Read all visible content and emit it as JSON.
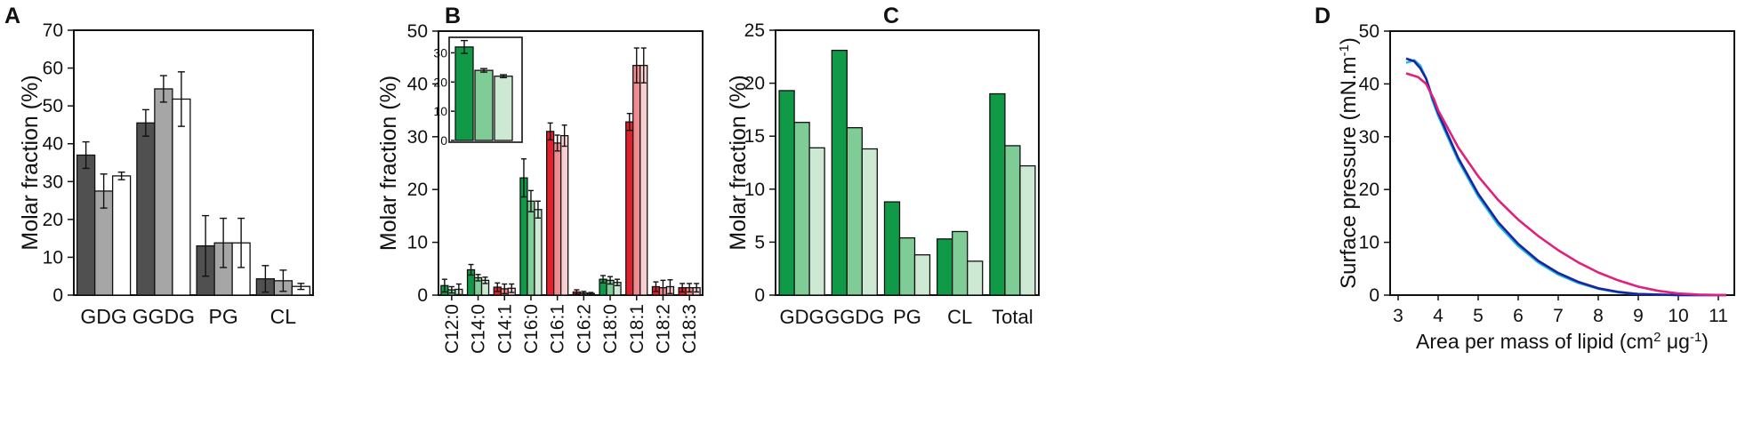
{
  "chart_data": [
    {
      "panel": "A",
      "type": "bar",
      "ylabel": "Molar fraction (%)",
      "xlabel": "",
      "ylim": [
        0,
        70
      ],
      "yticks": [
        "0",
        "10",
        "20",
        "30",
        "40",
        "50",
        "60",
        "70"
      ],
      "categories": [
        "GDG",
        "GGDG",
        "PG",
        "CL"
      ],
      "colors": [
        "#505050",
        "#a6a6a6",
        "#ffffff"
      ],
      "series": [
        {
          "name": "series-1",
          "values": [
            37,
            45.5,
            13,
            4.3
          ],
          "errors": [
            3.5,
            3.5,
            8,
            3.5
          ]
        },
        {
          "name": "series-2",
          "values": [
            27.5,
            54.5,
            13.8,
            3.8
          ],
          "errors": [
            4.5,
            3.5,
            6.5,
            2.8
          ]
        },
        {
          "name": "series-3",
          "values": [
            31.5,
            51.8,
            13.8,
            2.3
          ],
          "errors": [
            1,
            7.2,
            6.5,
            0.8
          ]
        }
      ]
    },
    {
      "panel": "B",
      "type": "bar",
      "ylabel": "Molar fraction (%)",
      "ylim": [
        0,
        50
      ],
      "yticks": [
        "0",
        "10",
        "20",
        "30",
        "40",
        "50"
      ],
      "categories": [
        "C12:0",
        "C14:0",
        "C14:1",
        "C16:0",
        "C16:1",
        "C16:2",
        "C18:0",
        "C18:1",
        "C18:2",
        "C18:3"
      ],
      "group_palette": [
        "green",
        "green",
        "red",
        "green",
        "red",
        "red",
        "green",
        "red",
        "red",
        "red"
      ],
      "palettes": {
        "green": [
          "#109a48",
          "#7fcc96",
          "#cde9d4"
        ],
        "red": [
          "#e0202c",
          "#ef8a8e",
          "#f8cfd1"
        ]
      },
      "series": [
        {
          "name": "series-1",
          "values": [
            1.8,
            4.8,
            1.5,
            22.2,
            31,
            0.6,
            3,
            32.8,
            1.6,
            1.4
          ],
          "errors": [
            1.2,
            1,
            0.8,
            3.6,
            1.6,
            0.4,
            0.7,
            1.6,
            0.9,
            0.8
          ]
        },
        {
          "name": "series-2",
          "values": [
            1,
            3.3,
            1.2,
            17.8,
            28.8,
            0.4,
            2.8,
            43.5,
            1.4,
            1.4
          ],
          "errors": [
            0.6,
            0.6,
            0.9,
            2,
            1.5,
            0.3,
            0.7,
            3.3,
            1.4,
            0.8
          ]
        },
        {
          "name": "series-3",
          "values": [
            1.1,
            2.8,
            1.3,
            16.2,
            30.2,
            0.3,
            2.4,
            43.5,
            1.6,
            1.4
          ],
          "errors": [
            1,
            0.6,
            0.8,
            1.6,
            2,
            0.2,
            0.6,
            3.3,
            1.3,
            0.8
          ]
        }
      ],
      "inset": {
        "ylim": [
          0,
          35
        ],
        "yticks": [
          "0",
          "10",
          "20",
          "30"
        ],
        "colors": [
          "#109a48",
          "#7fcc96",
          "#cde9d4"
        ],
        "values": [
          32,
          24,
          22
        ],
        "errors": [
          2.2,
          0.6,
          0.5
        ]
      }
    },
    {
      "panel": "C",
      "type": "bar",
      "ylabel": "Molar fraction (%)",
      "ylim": [
        0,
        25
      ],
      "yticks": [
        "0",
        "5",
        "10",
        "15",
        "20",
        "25"
      ],
      "categories": [
        "GDG",
        "GGDG",
        "PG",
        "CL",
        "Total"
      ],
      "colors": [
        "#109a48",
        "#7fcc96",
        "#cde9d4"
      ],
      "series": [
        {
          "name": "series-1",
          "values": [
            19.3,
            23.1,
            8.8,
            5.3,
            19
          ]
        },
        {
          "name": "series-2",
          "values": [
            16.3,
            15.8,
            5.4,
            6,
            14.1
          ]
        },
        {
          "name": "series-3",
          "values": [
            13.9,
            13.8,
            3.8,
            3.2,
            12.2
          ]
        }
      ]
    },
    {
      "panel": "D",
      "type": "line",
      "ylabel": "Surface pressure (mN.m",
      "ylabel_sup": "-1",
      "ylabel_end": ")",
      "xlabel": "Area per mass of lipid (cm",
      "xlabel_sup1": "2",
      "xlabel_mid": " μg",
      "xlabel_sup2": "-1",
      "xlabel_end": ")",
      "xlim": [
        2.8,
        11.4
      ],
      "ylim": [
        0,
        50
      ],
      "xticks": [
        "3",
        "4",
        "5",
        "6",
        "7",
        "8",
        "9",
        "10",
        "11"
      ],
      "yticks": [
        "0",
        "10",
        "20",
        "30",
        "40",
        "50"
      ],
      "series": [
        {
          "name": "light-blue",
          "color": "#20b8e0",
          "x": [
            3.2,
            3.4,
            3.55,
            3.7,
            3.85,
            4,
            4.5,
            5,
            5.5,
            6,
            6.5,
            7,
            7.5,
            8,
            8.5,
            9,
            9.5,
            10,
            11.2
          ],
          "y": [
            44,
            44.5,
            43.5,
            41,
            37,
            34,
            25.5,
            18.7,
            13.3,
            9.3,
            6.2,
            3.9,
            2.3,
            1.2,
            0.5,
            0.2,
            0.1,
            0,
            0
          ]
        },
        {
          "name": "dark-blue",
          "color": "#1a24a0",
          "x": [
            3.2,
            3.4,
            3.55,
            3.7,
            3.85,
            4,
            4.5,
            5,
            5.5,
            6,
            6.5,
            7,
            7.5,
            8,
            8.5,
            9,
            9.5,
            10,
            11.2
          ],
          "y": [
            44.8,
            44.3,
            43,
            41,
            37.5,
            34.5,
            26,
            19.2,
            13.8,
            9.7,
            6.5,
            4.2,
            2.5,
            1.3,
            0.6,
            0.2,
            0.1,
            0,
            0
          ]
        },
        {
          "name": "magenta",
          "color": "#e0207a",
          "x": [
            3.2,
            3.5,
            3.7,
            3.9,
            4,
            4.5,
            5,
            5.5,
            6,
            6.5,
            7,
            7.5,
            8,
            8.5,
            9,
            9.5,
            10,
            10.5,
            11.2
          ],
          "y": [
            42,
            41.3,
            40,
            37,
            35,
            28,
            22.5,
            18,
            14.3,
            11.2,
            8.5,
            6.2,
            4.3,
            2.8,
            1.6,
            0.8,
            0.3,
            0.1,
            0
          ]
        }
      ]
    }
  ],
  "panel_labels": [
    "A",
    "B",
    "C",
    "D"
  ]
}
